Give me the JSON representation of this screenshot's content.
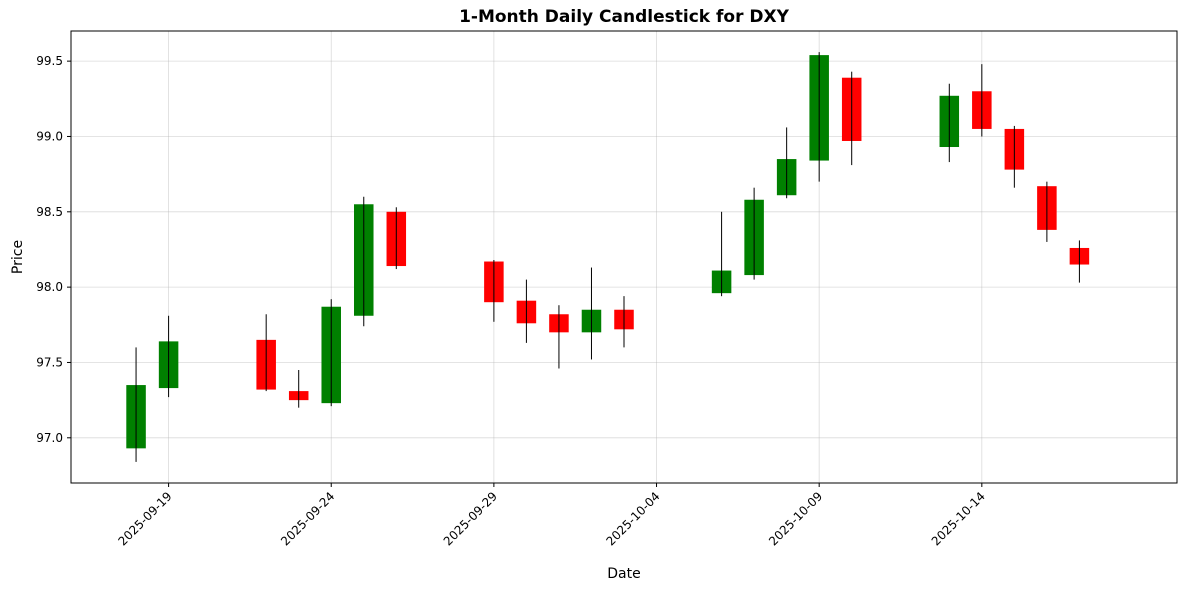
{
  "chart_data": {
    "type": "candlestick",
    "title": "1-Month Daily Candlestick for DXY",
    "xlabel": "Date",
    "ylabel": "Price",
    "xlim": [
      "2025-09-16",
      "2025-10-20"
    ],
    "ylim": [
      96.7,
      99.7
    ],
    "x_ticks": [
      "2025-09-19",
      "2025-09-24",
      "2025-09-29",
      "2025-10-04",
      "2025-10-09",
      "2025-10-14"
    ],
    "y_ticks": [
      97.0,
      97.5,
      98.0,
      98.5,
      99.0,
      99.5
    ],
    "y_tick_labels": [
      "97.0",
      "97.5",
      "98.0",
      "98.5",
      "99.0",
      "99.5"
    ],
    "grid": true,
    "legend": "none",
    "up_color": "#008000",
    "down_color": "#ff0000",
    "wick_color": "#000000",
    "candles": [
      {
        "date": "2025-09-18",
        "open": 96.93,
        "high": 97.6,
        "low": 96.84,
        "close": 97.35
      },
      {
        "date": "2025-09-19",
        "open": 97.33,
        "high": 97.81,
        "low": 97.27,
        "close": 97.64
      },
      {
        "date": "2025-09-22",
        "open": 97.65,
        "high": 97.82,
        "low": 97.31,
        "close": 97.32
      },
      {
        "date": "2025-09-23",
        "open": 97.31,
        "high": 97.45,
        "low": 97.2,
        "close": 97.25
      },
      {
        "date": "2025-09-24",
        "open": 97.23,
        "high": 97.92,
        "low": 97.21,
        "close": 97.87
      },
      {
        "date": "2025-09-25",
        "open": 97.81,
        "high": 98.6,
        "low": 97.74,
        "close": 98.55
      },
      {
        "date": "2025-09-26",
        "open": 98.5,
        "high": 98.53,
        "low": 98.12,
        "close": 98.14
      },
      {
        "date": "2025-09-29",
        "open": 98.17,
        "high": 98.18,
        "low": 97.77,
        "close": 97.9
      },
      {
        "date": "2025-09-30",
        "open": 97.91,
        "high": 98.05,
        "low": 97.63,
        "close": 97.76
      },
      {
        "date": "2025-10-01",
        "open": 97.82,
        "high": 97.88,
        "low": 97.46,
        "close": 97.7
      },
      {
        "date": "2025-10-02",
        "open": 97.7,
        "high": 98.13,
        "low": 97.52,
        "close": 97.85
      },
      {
        "date": "2025-10-03",
        "open": 97.85,
        "high": 97.94,
        "low": 97.6,
        "close": 97.72
      },
      {
        "date": "2025-10-06",
        "open": 97.96,
        "high": 98.5,
        "low": 97.94,
        "close": 98.11
      },
      {
        "date": "2025-10-07",
        "open": 98.08,
        "high": 98.66,
        "low": 98.05,
        "close": 98.58
      },
      {
        "date": "2025-10-08",
        "open": 98.61,
        "high": 99.06,
        "low": 98.59,
        "close": 98.85
      },
      {
        "date": "2025-10-09",
        "open": 98.84,
        "high": 99.56,
        "low": 98.7,
        "close": 99.54
      },
      {
        "date": "2025-10-10",
        "open": 99.39,
        "high": 99.43,
        "low": 98.81,
        "close": 98.97
      },
      {
        "date": "2025-10-13",
        "open": 98.93,
        "high": 99.35,
        "low": 98.83,
        "close": 99.27
      },
      {
        "date": "2025-10-14",
        "open": 99.3,
        "high": 99.48,
        "low": 99.0,
        "close": 99.05
      },
      {
        "date": "2025-10-15",
        "open": 99.05,
        "high": 99.07,
        "low": 98.66,
        "close": 98.78
      },
      {
        "date": "2025-10-16",
        "open": 98.67,
        "high": 98.7,
        "low": 98.3,
        "close": 98.38
      },
      {
        "date": "2025-10-17",
        "open": 98.26,
        "high": 98.31,
        "low": 98.03,
        "close": 98.15
      }
    ]
  }
}
